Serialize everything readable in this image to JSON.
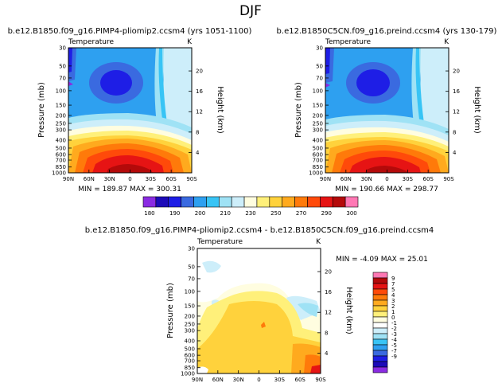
{
  "page": {
    "title": "DJF"
  },
  "colors": {
    "abs_scale": [
      "#8a2be2",
      "#1c0ab8",
      "#1e1ee6",
      "#3a6ae0",
      "#2ea0f0",
      "#38c4f5",
      "#9fe2f5",
      "#cdeefa",
      "#fffde0",
      "#fff07a",
      "#ffd23c",
      "#ffaa1e",
      "#ff7a0a",
      "#ff4a0a",
      "#e61414",
      "#b40a0a",
      "#ff78b4"
    ],
    "diff_scale": [
      "#8a2be2",
      "#1c0ab8",
      "#1e1ee6",
      "#3a6ae0",
      "#2ea0f0",
      "#38c4f5",
      "#9fe2f5",
      "#cdeefa",
      "#ffffff",
      "#fffde0",
      "#fff07a",
      "#ffd23c",
      "#ffaa1e",
      "#ff7a0a",
      "#ff4a0a",
      "#e61414",
      "#b40a0a",
      "#ff78b4"
    ]
  },
  "chart_data": [
    {
      "id": "panel1",
      "type": "heatmap",
      "title": "b.e12.B1850.f09_g16.PIMP4-pliomip2.ccsm4 (yrs 1051-1100)",
      "left_label": "Temperature",
      "right_label": "K",
      "xlabel": "",
      "ylabel": "Pressure (mb)",
      "y2label": "Height (km)",
      "x_ticks": [
        "90N",
        "60N",
        "30N",
        "0",
        "30S",
        "60S",
        "90S"
      ],
      "y_ticks": [
        "30",
        "50",
        "70",
        "100",
        "150",
        "200",
        "250",
        "300",
        "400",
        "500",
        "600",
        "700",
        "850",
        "1000"
      ],
      "y2_ticks": [
        "20",
        "16",
        "12",
        "8",
        "4"
      ],
      "xlim": [
        90,
        -90
      ],
      "ylim_mb": [
        1000,
        30
      ],
      "stats": "MIN = 189.87   MAX = 300.31",
      "min": 189.87,
      "max": 300.31
    },
    {
      "id": "panel2",
      "type": "heatmap",
      "title": "b.e12.B1850C5CN.f09_g16.preind.ccsm4 (yrs 130-179)",
      "left_label": "Temperature",
      "right_label": "K",
      "xlabel": "",
      "ylabel": "Pressure (mb)",
      "y2label": "Height (km)",
      "x_ticks": [
        "90N",
        "60N",
        "30N",
        "0",
        "30S",
        "60S",
        "90S"
      ],
      "y_ticks": [
        "30",
        "50",
        "70",
        "100",
        "150",
        "200",
        "250",
        "300",
        "400",
        "500",
        "600",
        "700",
        "850",
        "1000"
      ],
      "y2_ticks": [
        "20",
        "16",
        "12",
        "8",
        "4"
      ],
      "xlim": [
        90,
        -90
      ],
      "ylim_mb": [
        1000,
        30
      ],
      "stats": "MIN = 190.66   MAX = 298.77",
      "min": 190.66,
      "max": 298.77
    },
    {
      "id": "panel3",
      "type": "heatmap",
      "title": "b.e12.B1850.f09_g16.PIMP4-pliomip2.ccsm4 - b.e12.B1850C5CN.f09_g16.preind.ccsm4",
      "left_label": "Temperature",
      "right_label": "K",
      "xlabel": "",
      "ylabel": "Pressure (mb)",
      "y2label": "Height (km)",
      "x_ticks": [
        "90N",
        "60N",
        "30N",
        "0",
        "30S",
        "60S",
        "90S"
      ],
      "y_ticks": [
        "30",
        "50",
        "70",
        "100",
        "150",
        "200",
        "250",
        "300",
        "400",
        "500",
        "600",
        "700",
        "850",
        "1000"
      ],
      "y2_ticks": [
        "20",
        "16",
        "12",
        "8",
        "4"
      ],
      "xlim": [
        90,
        -90
      ],
      "ylim_mb": [
        1000,
        30
      ],
      "stats": "MIN =  -4.09   MAX =  25.01",
      "min": -4.09,
      "max": 25.01
    }
  ],
  "colorbar_abs": {
    "labels": [
      "180",
      "190",
      "200",
      "210",
      "230",
      "250",
      "270",
      "290",
      "300"
    ]
  },
  "colorbar_diff": {
    "labels": [
      "9",
      "7",
      "5",
      "4",
      "3",
      "2",
      "1",
      "0",
      "-1",
      "-2",
      "-3",
      "-4",
      "-5",
      "-7",
      "-9"
    ]
  }
}
